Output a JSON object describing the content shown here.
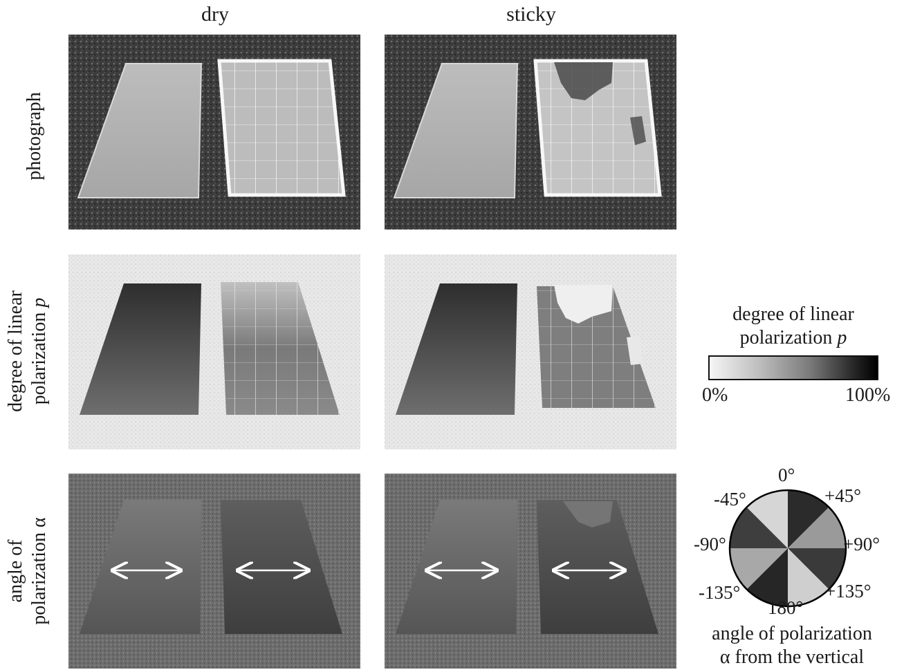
{
  "columns": {
    "left": "dry",
    "right": "sticky"
  },
  "rows": {
    "row1": "photograph",
    "row2_line1": "degree of linear",
    "row2_line2": "polarization",
    "row2_var": "p",
    "row3_line1": "angle of",
    "row3_line2": "polarization",
    "row3_var": "α"
  },
  "legend_p": {
    "title_line1": "degree of linear",
    "title_line2": "polarization",
    "title_var": "p",
    "min_label": "0%",
    "max_label": "100%"
  },
  "legend_alpha": {
    "top": "0°",
    "top_right": "+45°",
    "right": "+90°",
    "bottom_right": "+135°",
    "bottom": "180°",
    "bottom_left": "-135°",
    "left": "-90°",
    "top_left": "-45°",
    "caption_line1": "angle of polarization",
    "caption_line2": "α from the vertical"
  },
  "colors": {
    "grass": "#3a3a3a",
    "polar_background": "#e6e6e6",
    "angle_background": "#6a6a6a",
    "arrow": "#ffffff"
  }
}
